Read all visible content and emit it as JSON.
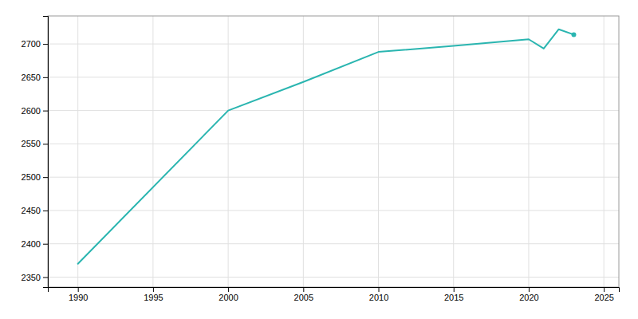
{
  "chart_data": {
    "type": "line",
    "x": [
      1990,
      2000,
      2005,
      2010,
      2015,
      2020,
      2021,
      2022,
      2023
    ],
    "values": [
      2370,
      2600,
      2643,
      2688,
      2697,
      2707,
      2693,
      2722,
      2714
    ],
    "color": "#2ab5b0",
    "xlim": [
      1988,
      2026
    ],
    "ylim": [
      2335,
      2742
    ],
    "xticks": [
      1990,
      1995,
      2000,
      2005,
      2010,
      2015,
      2020,
      2025
    ],
    "yticks": [
      2350,
      2400,
      2450,
      2500,
      2550,
      2600,
      2650,
      2700
    ],
    "grid": true
  }
}
